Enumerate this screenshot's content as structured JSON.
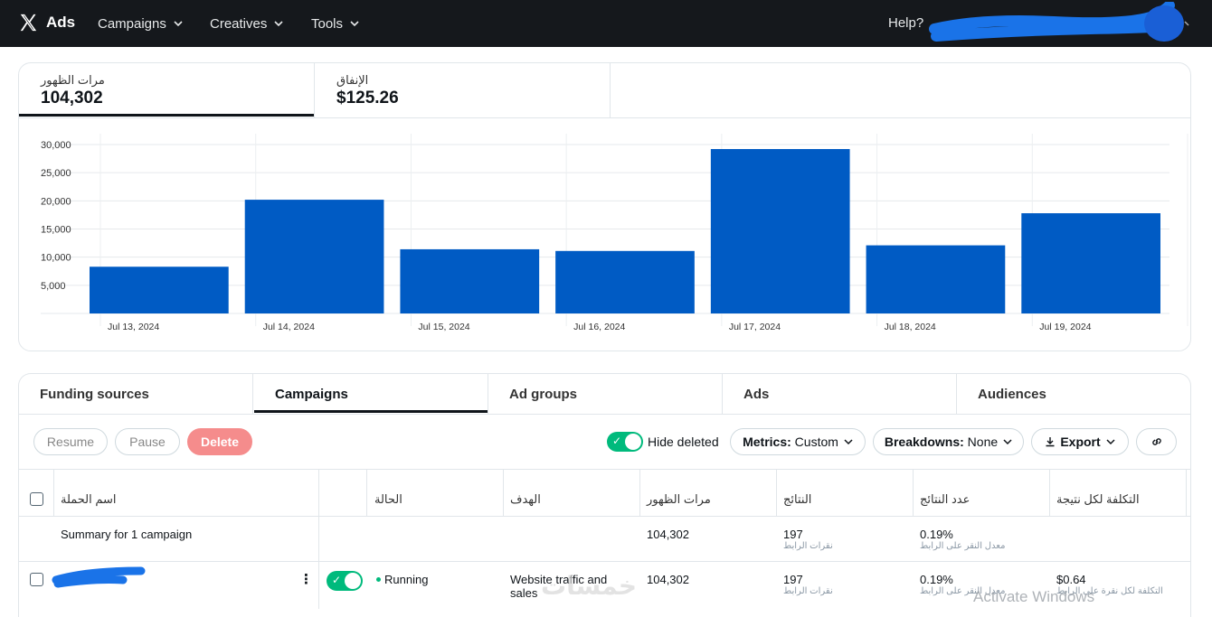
{
  "topbar": {
    "brand": "Ads",
    "nav": [
      "Campaigns",
      "Creatives",
      "Tools"
    ],
    "help": "Help?"
  },
  "metrics": [
    {
      "label": "مرات الظهور",
      "value": "104,302"
    },
    {
      "label": "الإنفاق",
      "value": "$125.26"
    }
  ],
  "chart_data": {
    "type": "bar",
    "categories": [
      "Jul 13, 2024",
      "Jul 14, 2024",
      "Jul 15, 2024",
      "Jul 16, 2024",
      "Jul 17, 2024",
      "Jul 18, 2024",
      "Jul 19, 2024"
    ],
    "values": [
      8300,
      20200,
      11400,
      11100,
      29200,
      12100,
      17800
    ],
    "yticks": [
      "5,000",
      "10,000",
      "15,000",
      "20,000",
      "25,000",
      "30,000"
    ],
    "ylim": [
      0,
      30000
    ],
    "color": "#005bc4",
    "title": "",
    "xlabel": "",
    "ylabel": ""
  },
  "tabs": [
    "Funding sources",
    "Campaigns",
    "Ad groups",
    "Ads",
    "Audiences"
  ],
  "actions": {
    "resume": "Resume",
    "pause": "Pause",
    "delete": "Delete",
    "hide_deleted": "Hide deleted",
    "metrics_label": "Metrics:",
    "metrics_value": "Custom",
    "breakdowns_label": "Breakdowns:",
    "breakdowns_value": "None",
    "export": "Export"
  },
  "table": {
    "headers": {
      "name": "اسم الحملة",
      "status": "الحالة",
      "objective": "الهدف",
      "impressions": "مرات الظهور",
      "results": "النتائج",
      "result_rate": "عدد النتائج",
      "cost_per_result": "التكلفة لكل نتيجة"
    },
    "summary": {
      "label": "Summary for 1 campaign",
      "impressions": "104,302",
      "results": "197",
      "results_sub": "نقرات الرابط",
      "rate": "0.19%",
      "rate_sub": "معدل النقر على الرابط"
    },
    "row": {
      "status": "Running",
      "objective": "Website traffic and sales",
      "impressions": "104,302",
      "results": "197",
      "results_sub": "نقرات الرابط",
      "rate": "0.19%",
      "rate_sub": "معدل النقر على الرابط",
      "cost": "$0.64",
      "cost_sub": "التكلفة لكل نقرة على الرابط"
    }
  },
  "overlay": {
    "windows_watermark": "Activate Windows",
    "site_watermark": "خمسات"
  }
}
